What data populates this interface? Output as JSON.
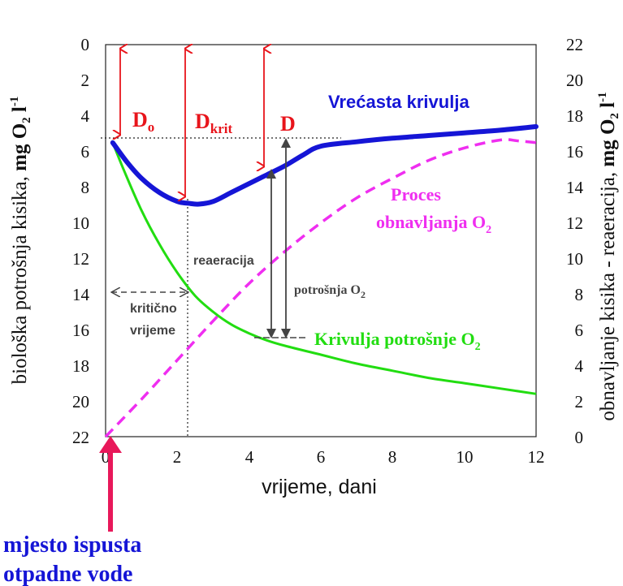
{
  "chart_data": {
    "type": "line",
    "x_axis": {
      "label": "vrijeme, dani",
      "range": [
        0,
        12
      ],
      "ticks": [
        "0",
        "2",
        "4",
        "6",
        "8",
        "10",
        "12"
      ]
    },
    "y_left_axis": {
      "label_main": "biološka potrošnja kisika, ",
      "label_unit": "mg O",
      "label_sub": "2",
      "label_unit2": " l",
      "label_sup": "-1",
      "range": [
        0,
        22
      ],
      "inverted": true,
      "ticks": [
        "0",
        "2",
        "4",
        "6",
        "8",
        "10",
        "12",
        "14",
        "16",
        "18",
        "20",
        "22"
      ]
    },
    "y_right_axis": {
      "label_main": "obnavljanje kisika - reaeracija, ",
      "label_unit": "mg O",
      "label_sub": "2",
      "label_unit2": " l",
      "label_sup": "-1",
      "range": [
        0,
        22
      ],
      "ticks": [
        "0",
        "2",
        "4",
        "6",
        "8",
        "10",
        "12",
        "14",
        "16",
        "18",
        "20",
        "22"
      ]
    },
    "series": [
      {
        "name": "Vrećasta krivulja",
        "color": "#1515d6",
        "axis": "left",
        "style": "solid-thick",
        "x": [
          0.2,
          0.6,
          1.0,
          1.5,
          2.0,
          2.3,
          2.6,
          3.0,
          3.5,
          4.0,
          4.5,
          5.0,
          5.5,
          6.0,
          7.0,
          8.0,
          9.0,
          10.0,
          11.0,
          12.0
        ],
        "y": [
          5.5,
          6.6,
          7.5,
          8.3,
          8.8,
          8.9,
          8.95,
          8.8,
          8.3,
          7.8,
          7.3,
          6.8,
          6.2,
          5.7,
          5.45,
          5.25,
          5.1,
          4.95,
          4.8,
          4.6
        ]
      },
      {
        "name": "Krivulja potrošnje O2",
        "label_main": "Krivulja potrošnje O",
        "label_sub": "2",
        "color": "#22dd11",
        "axis": "left",
        "style": "solid",
        "x": [
          0.2,
          0.5,
          1.0,
          1.5,
          2.0,
          2.5,
          3.0,
          3.5,
          4.0,
          4.5,
          5.0,
          6.0,
          7.0,
          8.0,
          9.0,
          10.0,
          11.0,
          12.0
        ],
        "y": [
          5.5,
          7.0,
          9.3,
          11.2,
          12.8,
          14.1,
          15.0,
          15.7,
          16.2,
          16.6,
          16.9,
          17.4,
          17.9,
          18.3,
          18.7,
          19.0,
          19.3,
          19.6
        ]
      },
      {
        "name": "Proces obnavljanja O2",
        "label_line1": "Proces",
        "label_line2": "obnavljanja O",
        "label_sub": "2",
        "color": "#ef2ef0",
        "axis": "right",
        "style": "dashed",
        "x": [
          0.0,
          1.0,
          2.0,
          3.0,
          4.0,
          5.0,
          6.0,
          7.0,
          8.0,
          9.0,
          10.0,
          11.0,
          11.5,
          12.0
        ],
        "y": [
          0.0,
          2.1,
          4.3,
          6.5,
          8.6,
          10.4,
          12.0,
          13.4,
          14.5,
          15.5,
          16.2,
          16.65,
          16.6,
          16.5
        ]
      }
    ],
    "annotations": {
      "d0": {
        "label": "D",
        "sub": "o",
        "x": 0.4,
        "y_from": 0,
        "y_to": 5.5
      },
      "dkrit": {
        "label": "D",
        "sub": "krit",
        "x": 2.2,
        "y_from": 0,
        "y_to": 8.9
      },
      "d": {
        "label": "D",
        "x": 4.4,
        "y_from": 0,
        "y_to": 7.0
      },
      "reaeracija": {
        "label": "reaeracija",
        "x": 4.6,
        "y_from": 16.5,
        "y_to": 7.0
      },
      "potrosnja": {
        "label_main": "potrošnja O",
        "label_sub": "2",
        "x": 5.05,
        "y_from": 16.5,
        "y_to": 5.5
      },
      "kriticno": {
        "line1": "kritično",
        "line2": "vrijeme",
        "x_from": 0.1,
        "x_to": 2.3,
        "y": 14
      },
      "source": {
        "line1": "mjesto ispusta",
        "line2": "otpadne vode",
        "x": 0.2,
        "color": "#e8185a"
      }
    },
    "colors": {
      "red": "#e8141b",
      "blue_text": "#1515d6",
      "gray_text": "#444444"
    }
  }
}
